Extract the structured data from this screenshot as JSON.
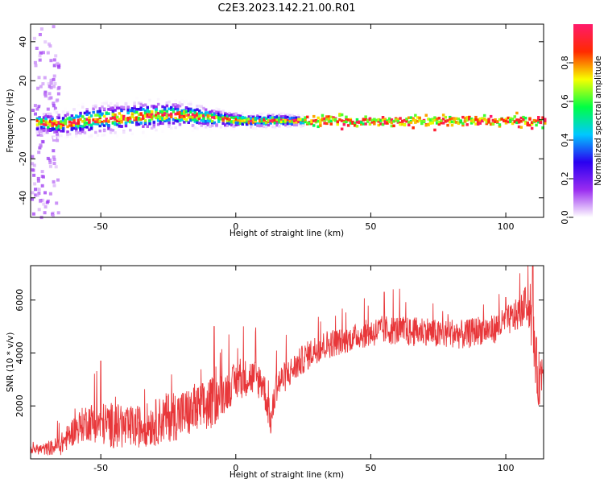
{
  "title": "C2E3.2023.142.21.00.R01",
  "chart_data": [
    {
      "type": "heatmap",
      "xlabel": "Height of straight line (km)",
      "ylabel": "Frequency (Hz)",
      "xlim": [
        -76,
        114
      ],
      "ylim": [
        -50,
        49
      ],
      "xticks": [
        -50,
        0,
        50,
        100
      ],
      "yticks": [
        -40,
        -20,
        0,
        20,
        40
      ],
      "colorbar": {
        "label": "Normalized spectral amplitude",
        "range": [
          0,
          1
        ],
        "ticks": [
          0.0,
          0.2,
          0.4,
          0.6,
          0.8
        ],
        "colors": [
          "#ffffff",
          "#9a2cf0",
          "#2a00f0",
          "#00c8ff",
          "#00ff44",
          "#f7ff00",
          "#ff2a00",
          "#ff1a6b"
        ]
      },
      "grid": false,
      "ridge": {
        "description": "Main frequency band near 0 Hz",
        "x": [
          -73,
          -65,
          -55,
          -45,
          -35,
          -25,
          -15,
          -5,
          5,
          15,
          25,
          50,
          100,
          113
        ],
        "center_hz": [
          -1,
          -1.5,
          0.5,
          1.5,
          2.5,
          3.5,
          2.5,
          1,
          0,
          0.5,
          0,
          0,
          0,
          0
        ],
        "spread_hz": [
          3,
          3.5,
          4.5,
          4.5,
          4.5,
          4,
          3.5,
          2.5,
          2,
          2,
          1.5,
          1.2,
          1.2,
          1.5
        ]
      }
    },
    {
      "type": "line",
      "xlabel": "Height of straight line (km)",
      "ylabel": "SNR (10 * v/v)",
      "xlim": [
        -76,
        114
      ],
      "ylim": [
        0,
        7300
      ],
      "xticks": [
        -50,
        0,
        50,
        100
      ],
      "yticks": [
        2000,
        4000,
        6000
      ],
      "color": "#e8373a",
      "grid": false,
      "series": [
        {
          "x": [
            -76,
            -70,
            -65,
            -60,
            -55,
            -50,
            -45,
            -40,
            -35,
            -30,
            -25,
            -20,
            -15,
            -10,
            -5,
            0,
            5,
            10,
            13,
            15,
            20,
            25,
            30,
            35,
            40,
            45,
            50,
            55,
            60,
            65,
            70,
            75,
            80,
            85,
            90,
            95,
            100,
            105,
            108,
            110,
            112,
            114
          ],
          "y": [
            300,
            300,
            400,
            900,
            1200,
            1100,
            1000,
            900,
            1000,
            1100,
            1300,
            1400,
            1500,
            1700,
            2200,
            2700,
            2900,
            2700,
            1200,
            2600,
            3100,
            3600,
            4000,
            4200,
            4300,
            4500,
            4600,
            4700,
            4700,
            4600,
            4700,
            4500,
            4600,
            4500,
            4700,
            4700,
            5000,
            5300,
            5700,
            4500,
            2600,
            3300
          ],
          "noise": [
            200,
            300,
            500,
            700,
            900,
            1000,
            1100,
            1000,
            1000,
            1100,
            1200,
            1200,
            1200,
            1300,
            1000,
            900,
            900,
            900,
            700,
            800,
            700,
            700,
            700,
            700,
            600,
            600,
            700,
            700,
            700,
            700,
            700,
            700,
            700,
            700,
            700,
            700,
            700,
            800,
            900,
            1300,
            1400,
            1000
          ],
          "peaks": [
            {
              "x": -50,
              "y": 3700
            },
            {
              "x": -8,
              "y": 5000
            },
            {
              "x": 55,
              "y": 6300
            },
            {
              "x": 100,
              "y": 6100
            },
            {
              "x": 110,
              "y": 7300
            }
          ]
        }
      ]
    }
  ]
}
